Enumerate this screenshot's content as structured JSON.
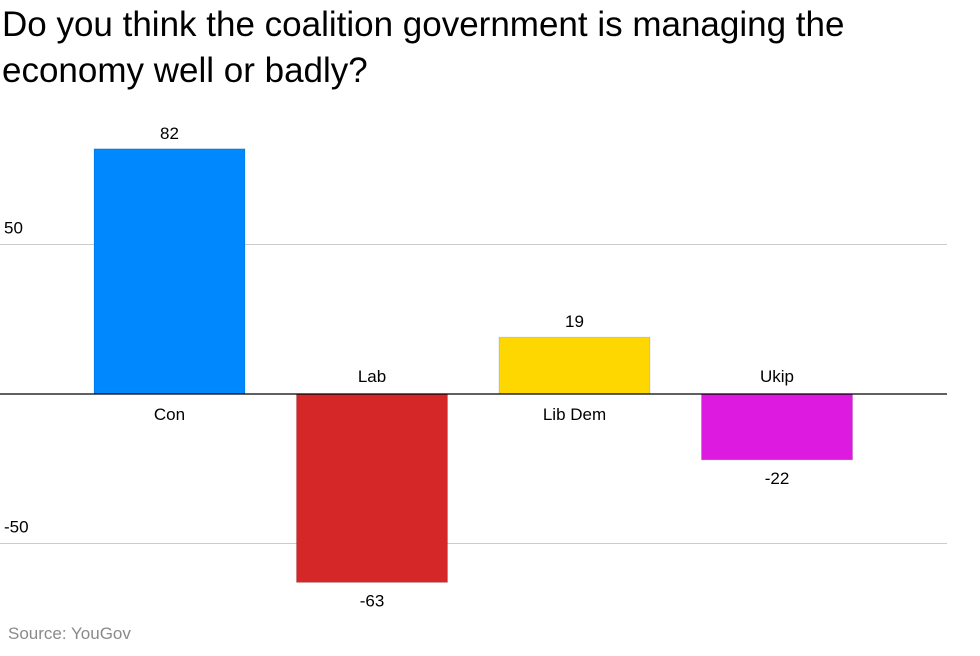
{
  "title": "Do you think the coalition government is managing the economy well or badly?",
  "source": "Source: YouGov",
  "chart_data": {
    "type": "bar",
    "title": "Do you think the coalition government is managing the economy well or badly?",
    "categories": [
      "Con",
      "Lab",
      "Lib Dem",
      "Ukip"
    ],
    "values": [
      82,
      -63,
      19,
      -22
    ],
    "colors": [
      "#0088ff",
      "#d62728",
      "#ffd700",
      "#dd1adf"
    ],
    "yticks": [
      50,
      -50
    ],
    "ylim": [
      -70,
      90
    ],
    "xlabel": "",
    "ylabel": "",
    "grid": true,
    "legend": "none"
  }
}
